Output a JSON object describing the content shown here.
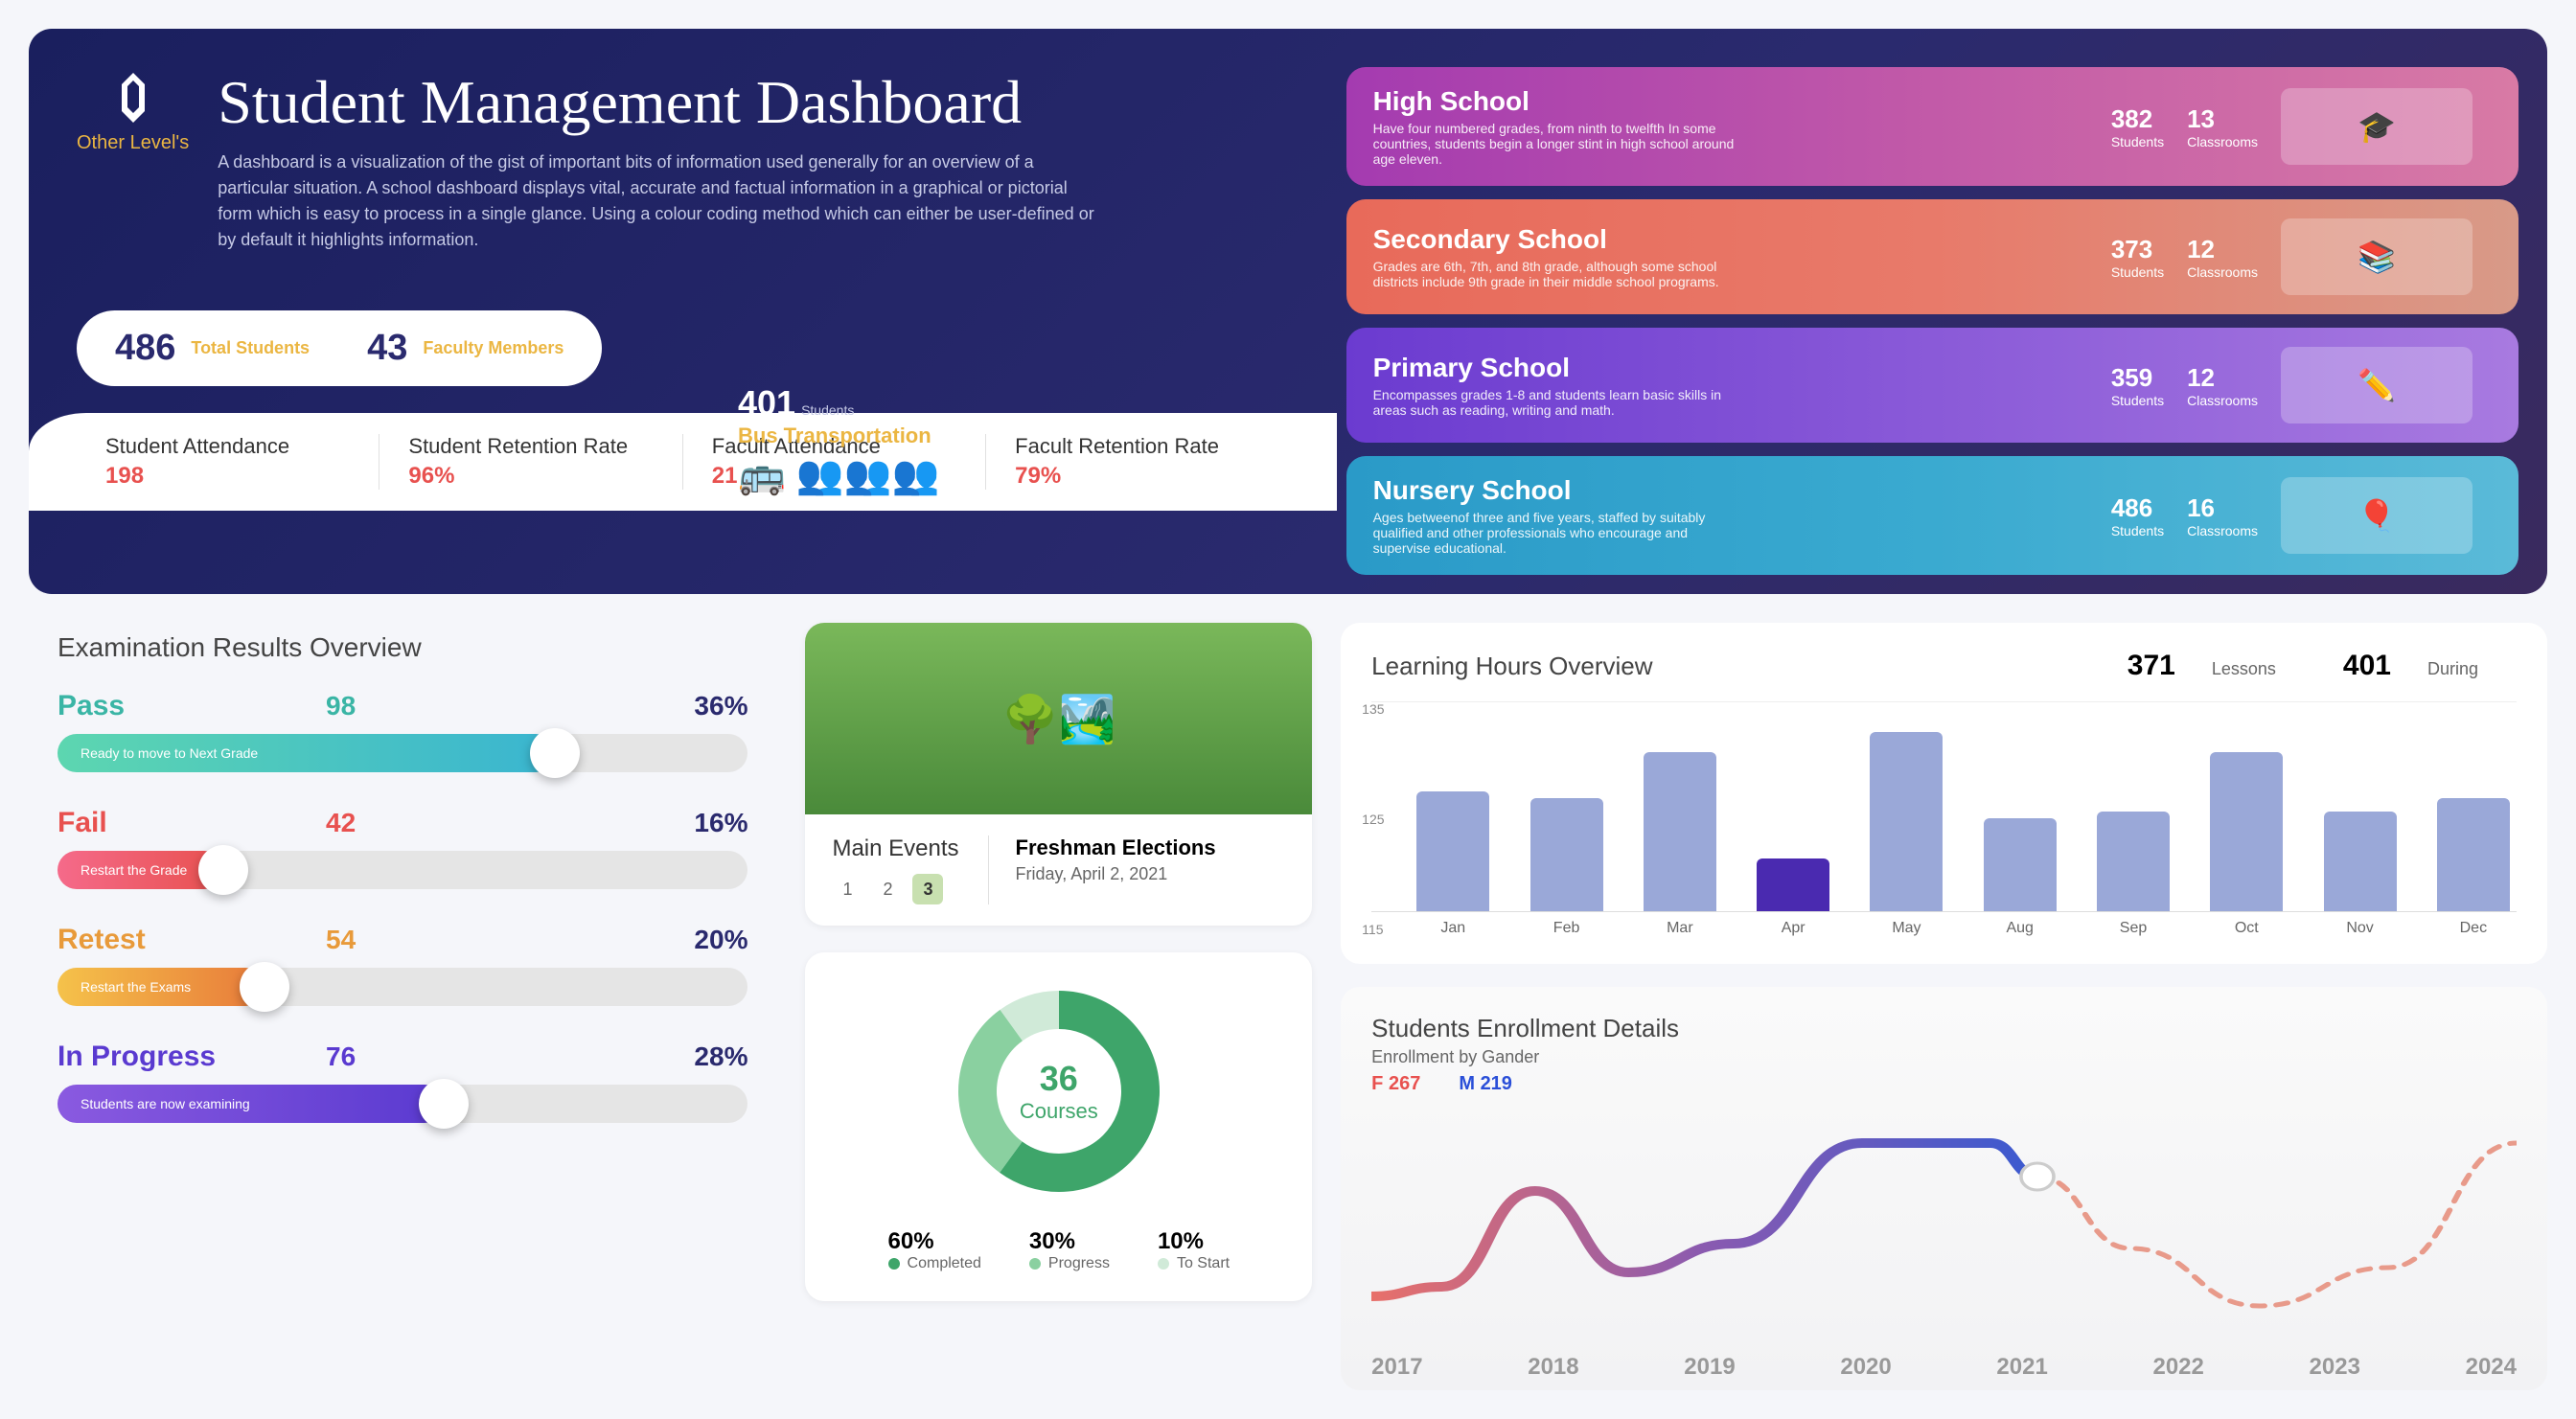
{
  "brand": {
    "name": "Other Level's"
  },
  "hero": {
    "title": "Student Management Dashboard",
    "desc": "A dashboard is a visualization of the gist of important bits of information used generally for an overview of a particular situation. A school dashboard displays vital, accurate and factual information in a graphical or pictorial form which is easy to process in a single glance. Using a colour coding method which can either be user-defined or by default it highlights information.",
    "total_students": "486",
    "total_students_lbl": "Total Students",
    "faculty": "43",
    "faculty_lbl": "Faculty Members",
    "bus_count": "401",
    "bus_students_lbl": "Students",
    "bus_title": "Bus Transportation"
  },
  "metrics": [
    {
      "lbl": "Student Attendance",
      "val": "198"
    },
    {
      "lbl": "Student Retention Rate",
      "val": "96%"
    },
    {
      "lbl": "Facult Attendance",
      "val": "21"
    },
    {
      "lbl": "Facult Retention Rate",
      "val": "79%"
    }
  ],
  "schools": [
    {
      "name": "High School",
      "desc": "Have four numbered grades, from ninth to twelfth In some countries, students begin a longer stint in high school around age eleven.",
      "students": "382",
      "classrooms": "13",
      "bg": "linear-gradient(90deg,#a43bb0,#c25aa8,#d87aa5)",
      "emoji": "🎓"
    },
    {
      "name": "Secondary School",
      "desc": "Grades are 6th, 7th, and 8th grade, although some school districts include 9th grade in their middle school programs.",
      "students": "373",
      "classrooms": "12",
      "bg": "linear-gradient(90deg,#e86a5a,#e87a6a,#d89a88)",
      "emoji": "📚"
    },
    {
      "name": "Primary School",
      "desc": "Encompasses grades 1-8 and students learn basic skills in areas such as reading, writing and math.",
      "students": "359",
      "classrooms": "12",
      "bg": "linear-gradient(90deg,#6b3bd0,#8a5ad8,#a87ae0)",
      "emoji": "✏️"
    },
    {
      "name": "Nursery School",
      "desc": "Ages betweenof three and five years, staffed by suitably qualified and other professionals who encourage and supervise educational.",
      "students": "486",
      "classrooms": "16",
      "bg": "linear-gradient(90deg,#2a9ac8,#3aaad0,#5abad8)",
      "emoji": "🎈"
    }
  ],
  "students_lbl": "Students",
  "classrooms_lbl": "Classrooms",
  "exam": {
    "title": "Examination Results Overview",
    "rows": [
      {
        "name": "Pass",
        "val": "98",
        "pct": "36%",
        "col": "#3ab5a5",
        "fill": "linear-gradient(90deg,#5dd6b0,#3ab5d0)",
        "w": 72,
        "sub": "Ready to move to Next Grade"
      },
      {
        "name": "Fail",
        "val": "42",
        "pct": "16%",
        "col": "#e8514f",
        "fill": "linear-gradient(90deg,#f56a8a,#e8514f)",
        "w": 24,
        "sub": "Restart the Grade"
      },
      {
        "name": "Retest",
        "val": "54",
        "pct": "20%",
        "col": "#e89a3a",
        "fill": "linear-gradient(90deg,#f5c24a,#e87a3a)",
        "w": 30,
        "sub": "Restart the Exams"
      },
      {
        "name": "In Progress",
        "val": "76",
        "pct": "28%",
        "col": "#5a3ad0",
        "fill": "linear-gradient(90deg,#8a5ae0,#5a3ad0)",
        "w": 56,
        "sub": "Students are now examining"
      }
    ]
  },
  "events": {
    "h": "Main Events",
    "pages": [
      "1",
      "2",
      "3"
    ],
    "active": 3,
    "title": "Freshman Elections",
    "date": "Friday, April 2, 2021"
  },
  "courses": {
    "count": "36",
    "lbl": "Courses",
    "completed_pct": 60,
    "progress_pct": 30,
    "tostart_pct": 10,
    "completed_lbl": "Completed",
    "progress_lbl": "Progress",
    "tostart_lbl": "To Start",
    "colors": {
      "completed": "#3ea56a",
      "progress": "#8ad0a0",
      "tostart": "#d0ead8"
    }
  },
  "hours": {
    "title": "Learning Hours Overview",
    "lessons": "371",
    "lessons_lbl": "Lessons",
    "during": "401",
    "during_lbl": "During",
    "ylim": [
      105,
      135
    ],
    "yticks": [
      "135",
      "125",
      "115"
    ],
    "months": [
      "Jan",
      "Feb",
      "Mar",
      "Apr",
      "May",
      "Aug",
      "Sep",
      "Oct",
      "Nov",
      "Dec"
    ],
    "values": [
      123,
      122,
      129,
      113,
      132,
      119,
      120,
      129,
      120,
      122
    ],
    "bar_color": "#9aa8d8",
    "highlight_idx": 3,
    "highlight_color": "#4a2ab0"
  },
  "enroll": {
    "title": "Students Enrollment Details",
    "sub": "Enrollment by Gander",
    "f_lbl": "F",
    "f_val": "267",
    "m_lbl": "M",
    "m_val": "219",
    "years": [
      "2017",
      "2018",
      "2019",
      "2020",
      "2021",
      "2022",
      "2023",
      "2024"
    ],
    "solid_points": [
      [
        0,
        200
      ],
      [
        60,
        190
      ],
      [
        140,
        90
      ],
      [
        220,
        175
      ],
      [
        310,
        145
      ],
      [
        420,
        40
      ],
      [
        530,
        40
      ],
      [
        570,
        75
      ]
    ],
    "dash_points": [
      [
        570,
        75
      ],
      [
        650,
        150
      ],
      [
        760,
        210
      ],
      [
        870,
        170
      ],
      [
        980,
        40
      ]
    ],
    "marker_x": 570,
    "marker_y": 75
  }
}
